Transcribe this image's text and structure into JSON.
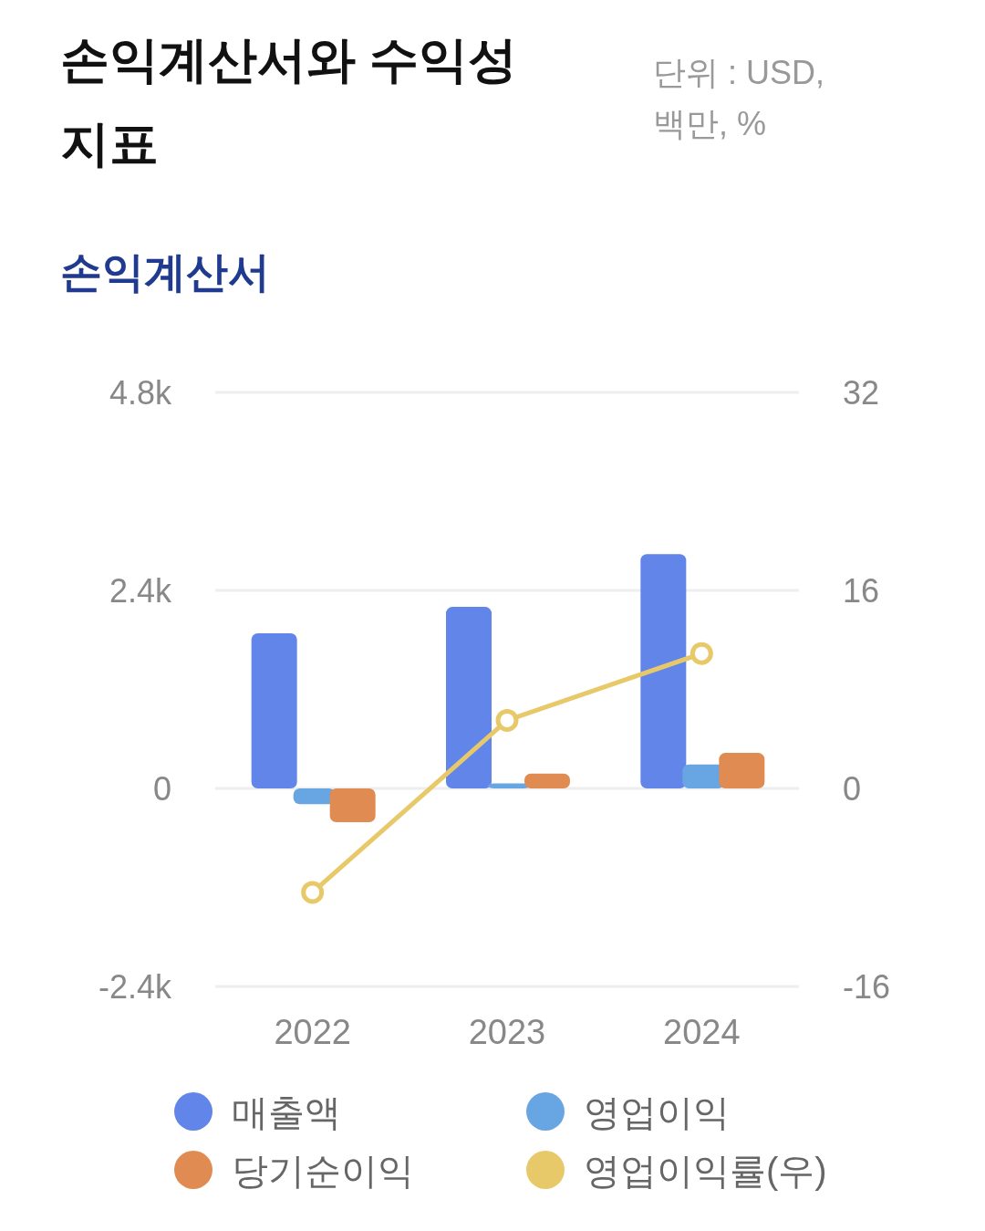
{
  "chart_data": {
    "type": "bar",
    "title": "손익계산서와 수익성 지표",
    "subtitle": "손익계산서",
    "annotations": [
      "단위 : USD, 백만, %"
    ],
    "categories": [
      "2022",
      "2023",
      "2024"
    ],
    "series": [
      {
        "name": "매출액",
        "color": "#6185e8",
        "values": [
          1880,
          2200,
          2840
        ]
      },
      {
        "name": "영업이익",
        "color": "#68a5e3",
        "values": [
          -190,
          60,
          290
        ]
      },
      {
        "name": "당기순이익",
        "color": "#e08b52",
        "values": [
          -410,
          180,
          430
        ]
      },
      {
        "name": "영업이익률(우)",
        "color": "#e8c96a",
        "type": "line",
        "axis": "y2",
        "marker": "circle",
        "values": [
          -8.4,
          5.5,
          10.9
        ]
      }
    ],
    "ylim": [
      -2400,
      4800
    ],
    "yticks": [
      {
        "value": -2400,
        "label": "-2.4k"
      },
      {
        "value": 0,
        "label": "0"
      },
      {
        "value": 2400,
        "label": "2.4k"
      },
      {
        "value": 4800,
        "label": "4.8k"
      }
    ],
    "y2lim": [
      -16,
      32
    ],
    "y2ticks": [
      -16,
      0,
      16,
      32
    ],
    "grid": "y",
    "legend": "bottom"
  }
}
